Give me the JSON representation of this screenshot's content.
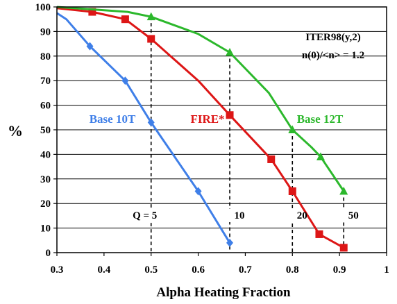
{
  "chart_data": {
    "type": "line",
    "xlabel": "Alpha Heating Fraction",
    "ylabel": "%",
    "xlim": [
      0.3,
      1.0
    ],
    "ylim": [
      0,
      100
    ],
    "x_ticks": [
      "0.3",
      "0.4",
      "0.5",
      "0.6",
      "0.7",
      "0.8",
      "0.9",
      "1"
    ],
    "y_ticks": [
      "0",
      "10",
      "20",
      "30",
      "40",
      "50",
      "60",
      "70",
      "80",
      "90",
      "100"
    ],
    "grid": "horizontal",
    "annotation_lines": [
      "ITER98(y,2)",
      "n(0)/<n> = 1.2"
    ],
    "q_labels": [
      {
        "text": "Q = 5",
        "x": 0.5
      },
      {
        "text": "10",
        "x": 0.667
      },
      {
        "text": "20",
        "x": 0.8
      },
      {
        "text": "50",
        "x": 0.909
      }
    ],
    "series": [
      {
        "name": "Base 10T",
        "color": "#3f7fe8",
        "marker": "diamond",
        "points": [
          [
            0.3,
            97.5
          ],
          [
            0.32,
            95
          ],
          [
            0.37,
            84
          ],
          [
            0.445,
            70
          ],
          [
            0.5,
            53
          ],
          [
            0.6,
            25
          ],
          [
            0.667,
            4
          ]
        ],
        "marker_points": [
          [
            0.37,
            84
          ],
          [
            0.445,
            70
          ],
          [
            0.5,
            53
          ],
          [
            0.6,
            25
          ],
          [
            0.667,
            4
          ]
        ]
      },
      {
        "name": "FIRE*",
        "color": "#dd1616",
        "marker": "square",
        "points": [
          [
            0.3,
            99.5
          ],
          [
            0.375,
            98
          ],
          [
            0.445,
            95
          ],
          [
            0.5,
            87
          ],
          [
            0.6,
            70
          ],
          [
            0.667,
            56
          ],
          [
            0.755,
            38
          ],
          [
            0.8,
            25
          ],
          [
            0.857,
            7.5
          ],
          [
            0.909,
            2
          ]
        ],
        "marker_points": [
          [
            0.375,
            98
          ],
          [
            0.445,
            95
          ],
          [
            0.5,
            87
          ],
          [
            0.667,
            56
          ],
          [
            0.755,
            38
          ],
          [
            0.8,
            25
          ],
          [
            0.857,
            7.5
          ],
          [
            0.909,
            2
          ]
        ]
      },
      {
        "name": "Base 12T",
        "color": "#2cb82c",
        "marker": "triangle",
        "points": [
          [
            0.3,
            100
          ],
          [
            0.45,
            98
          ],
          [
            0.5,
            96
          ],
          [
            0.6,
            89
          ],
          [
            0.667,
            81.5
          ],
          [
            0.75,
            65
          ],
          [
            0.8,
            50
          ],
          [
            0.84,
            43
          ],
          [
            0.86,
            39
          ],
          [
            0.909,
            25
          ]
        ],
        "marker_points": [
          [
            0.5,
            96
          ],
          [
            0.667,
            81.5
          ],
          [
            0.8,
            50
          ],
          [
            0.86,
            39
          ],
          [
            0.909,
            25
          ]
        ]
      }
    ]
  }
}
